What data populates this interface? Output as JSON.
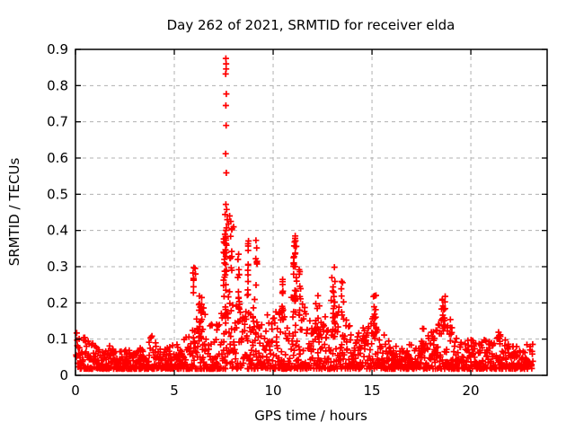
{
  "chart_data": {
    "type": "scatter",
    "title": "Day 262 of 2021, SRMTID for receiver elda",
    "xlabel": "GPS time / hours",
    "ylabel": "SRMTID / TECUs",
    "xlim": [
      0,
      23.86
    ],
    "ylim": [
      0,
      0.9
    ],
    "xticks": [
      {
        "v": 0,
        "label": "0"
      },
      {
        "v": 5,
        "label": "5"
      },
      {
        "v": 10,
        "label": "10"
      },
      {
        "v": 15,
        "label": "15"
      },
      {
        "v": 20,
        "label": "20"
      }
    ],
    "yticks": [
      {
        "v": 0.0,
        "label": "0"
      },
      {
        "v": 0.1,
        "label": "0.1"
      },
      {
        "v": 0.2,
        "label": "0.2"
      },
      {
        "v": 0.3,
        "label": "0.3"
      },
      {
        "v": 0.4,
        "label": "0.4"
      },
      {
        "v": 0.5,
        "label": "0.5"
      },
      {
        "v": 0.6,
        "label": "0.6"
      },
      {
        "v": 0.7,
        "label": "0.7"
      },
      {
        "v": 0.8,
        "label": "0.8"
      },
      {
        "v": 0.9,
        "label": "0.9"
      }
    ],
    "grid": true,
    "grid_color": "#b0b0b0",
    "marker": "plus",
    "marker_color": "#ff0000",
    "marker_size": 7,
    "border_color": "#000000",
    "seed": 2021262,
    "baseline": {
      "count": 1550,
      "x_min": 0.03,
      "x_max": 23.15,
      "y_floor": 0.018,
      "skew": 2.1,
      "envelope": [
        [
          0.0,
          0.125
        ],
        [
          0.3,
          0.13
        ],
        [
          0.6,
          0.1
        ],
        [
          1.0,
          0.085
        ],
        [
          1.5,
          0.08
        ],
        [
          2.0,
          0.09
        ],
        [
          2.4,
          0.075
        ],
        [
          2.9,
          0.07
        ],
        [
          3.3,
          0.08
        ],
        [
          3.7,
          0.115
        ],
        [
          4.1,
          0.1
        ],
        [
          4.5,
          0.08
        ],
        [
          5.0,
          0.085
        ],
        [
          5.4,
          0.095
        ],
        [
          5.8,
          0.12
        ],
        [
          6.1,
          0.15
        ],
        [
          6.35,
          0.21
        ],
        [
          6.6,
          0.17
        ],
        [
          6.9,
          0.14
        ],
        [
          7.2,
          0.16
        ],
        [
          7.5,
          0.22
        ],
        [
          7.7,
          0.25
        ],
        [
          8.0,
          0.19
        ],
        [
          8.3,
          0.21
        ],
        [
          8.6,
          0.22
        ],
        [
          8.9,
          0.17
        ],
        [
          9.2,
          0.15
        ],
        [
          9.5,
          0.16
        ],
        [
          9.8,
          0.17
        ],
        [
          10.1,
          0.18
        ],
        [
          10.4,
          0.2
        ],
        [
          10.7,
          0.17
        ],
        [
          11.0,
          0.25
        ],
        [
          11.2,
          0.28
        ],
        [
          11.5,
          0.21
        ],
        [
          11.8,
          0.17
        ],
        [
          12.1,
          0.18
        ],
        [
          12.4,
          0.2
        ],
        [
          12.7,
          0.17
        ],
        [
          13.0,
          0.22
        ],
        [
          13.3,
          0.2
        ],
        [
          13.6,
          0.16
        ],
        [
          13.9,
          0.14
        ],
        [
          14.2,
          0.12
        ],
        [
          14.5,
          0.13
        ],
        [
          14.8,
          0.15
        ],
        [
          15.1,
          0.17
        ],
        [
          15.4,
          0.14
        ],
        [
          15.7,
          0.11
        ],
        [
          16.0,
          0.09
        ],
        [
          16.4,
          0.075
        ],
        [
          16.8,
          0.085
        ],
        [
          17.2,
          0.1
        ],
        [
          17.6,
          0.11
        ],
        [
          18.0,
          0.12
        ],
        [
          18.3,
          0.14
        ],
        [
          18.6,
          0.16
        ],
        [
          18.9,
          0.13
        ],
        [
          19.2,
          0.11
        ],
        [
          19.6,
          0.095
        ],
        [
          20.0,
          0.1
        ],
        [
          20.4,
          0.11
        ],
        [
          20.8,
          0.095
        ],
        [
          21.2,
          0.1
        ],
        [
          21.5,
          0.115
        ],
        [
          21.9,
          0.09
        ],
        [
          22.3,
          0.085
        ],
        [
          22.7,
          0.09
        ],
        [
          23.0,
          0.085
        ],
        [
          23.15,
          0.095
        ]
      ]
    },
    "bursts": [
      {
        "x": 5.97,
        "w": 0.05,
        "n": 7,
        "y_lo": 0.19,
        "y_hi": 0.3
      },
      {
        "x": 6.35,
        "w": 0.22,
        "n": 20,
        "y_lo": 0.1,
        "y_hi": 0.225
      },
      {
        "x": 7.55,
        "w": 0.12,
        "n": 26,
        "y_lo": 0.14,
        "y_hi": 0.4
      },
      {
        "x": 7.62,
        "w": 0.05,
        "n": 10,
        "y_lo": 0.28,
        "y_hi": 0.47
      },
      {
        "x": 7.85,
        "w": 0.12,
        "n": 8,
        "y_lo": 0.28,
        "y_hi": 0.44
      },
      {
        "x": 8.25,
        "w": 0.1,
        "n": 14,
        "y_lo": 0.14,
        "y_hi": 0.34
      },
      {
        "x": 8.72,
        "w": 0.07,
        "n": 12,
        "y_lo": 0.2,
        "y_hi": 0.385
      },
      {
        "x": 9.15,
        "w": 0.08,
        "n": 7,
        "y_lo": 0.22,
        "y_hi": 0.375
      },
      {
        "x": 9.0,
        "w": 0.15,
        "n": 6,
        "y_lo": 0.12,
        "y_hi": 0.22
      },
      {
        "x": 10.5,
        "w": 0.15,
        "n": 12,
        "y_lo": 0.12,
        "y_hi": 0.28
      },
      {
        "x": 11.1,
        "w": 0.15,
        "n": 30,
        "y_lo": 0.14,
        "y_hi": 0.395
      },
      {
        "x": 11.35,
        "w": 0.08,
        "n": 10,
        "y_lo": 0.12,
        "y_hi": 0.31
      },
      {
        "x": 12.25,
        "w": 0.25,
        "n": 12,
        "y_lo": 0.1,
        "y_hi": 0.22
      },
      {
        "x": 13.05,
        "w": 0.18,
        "n": 16,
        "y_lo": 0.13,
        "y_hi": 0.305
      },
      {
        "x": 13.5,
        "w": 0.15,
        "n": 7,
        "y_lo": 0.1,
        "y_hi": 0.27
      },
      {
        "x": 15.15,
        "w": 0.15,
        "n": 12,
        "y_lo": 0.1,
        "y_hi": 0.235
      },
      {
        "x": 17.6,
        "w": 0.2,
        "n": 5,
        "y_lo": 0.08,
        "y_hi": 0.13
      },
      {
        "x": 18.6,
        "w": 0.22,
        "n": 16,
        "y_lo": 0.09,
        "y_hi": 0.225
      },
      {
        "x": 19.0,
        "w": 0.1,
        "n": 5,
        "y_lo": 0.08,
        "y_hi": 0.16
      },
      {
        "x": 21.45,
        "w": 0.12,
        "n": 6,
        "y_lo": 0.07,
        "y_hi": 0.125
      }
    ],
    "outliers": [
      [
        7.61,
        0.875
      ],
      [
        7.62,
        0.86
      ],
      [
        7.62,
        0.846
      ],
      [
        7.6,
        0.832
      ],
      [
        7.63,
        0.777
      ],
      [
        7.61,
        0.745
      ],
      [
        7.62,
        0.69
      ],
      [
        7.6,
        0.612
      ],
      [
        7.63,
        0.559
      ],
      [
        7.61,
        0.472
      ],
      [
        7.65,
        0.458
      ],
      [
        7.57,
        0.444
      ],
      [
        7.68,
        0.43
      ],
      [
        7.74,
        0.418
      ],
      [
        7.8,
        0.44
      ],
      [
        7.86,
        0.425
      ],
      [
        7.92,
        0.405
      ],
      [
        8.0,
        0.41
      ],
      [
        6.05,
        0.295
      ],
      [
        6.07,
        0.28
      ]
    ]
  }
}
